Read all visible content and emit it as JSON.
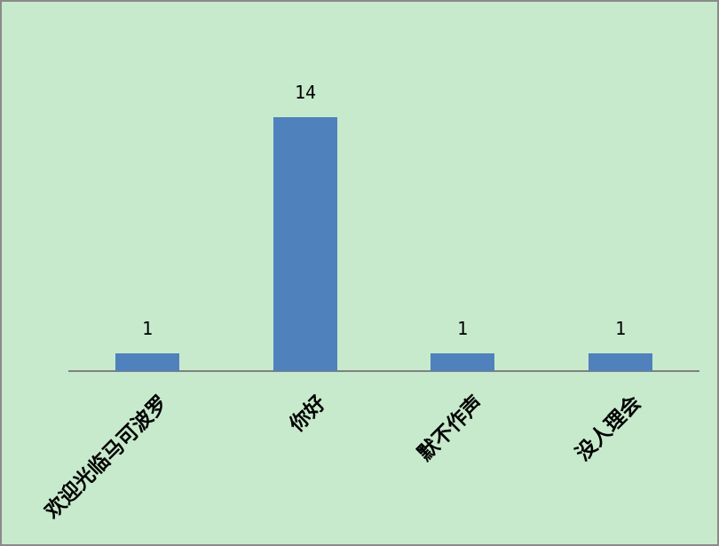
{
  "window": {
    "background_color": "#C7EACC",
    "frame_color": "#8A8A8A"
  },
  "chart_data": {
    "type": "bar",
    "title": "",
    "xlabel": "",
    "ylabel": "",
    "categories": [
      "欢迎光临马可波罗",
      "你好",
      "默不作声",
      "没人理会"
    ],
    "values": [
      1,
      14,
      1,
      1
    ],
    "data_labels": [
      "1",
      "14",
      "1",
      "1"
    ],
    "ylim": [
      0,
      14
    ],
    "bar_color": "#4F81BD",
    "axis_line_color": "#808080",
    "text_color": "#000000",
    "grid": false,
    "legend": "none",
    "y_axis_visible": false,
    "tick_label_rotation_deg": 45
  }
}
